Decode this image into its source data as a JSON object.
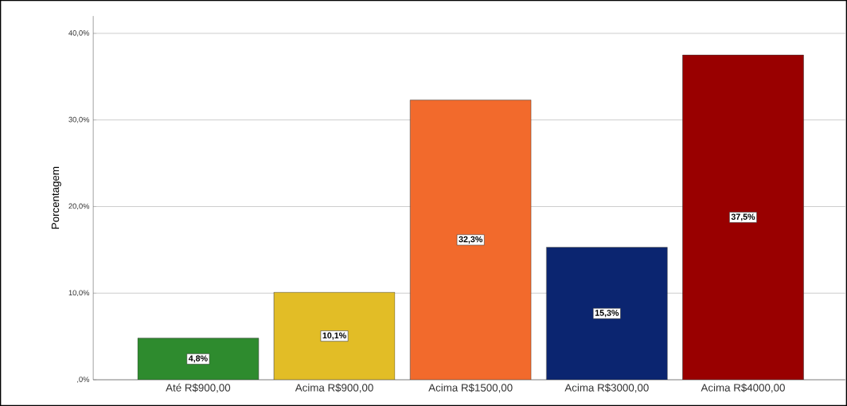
{
  "chart_data": {
    "type": "bar",
    "ylabel": "Porcentagem",
    "categories": [
      "Até R$900,00",
      "Acima R$900,00",
      "Acima R$1500,00",
      "Acima R$3000,00",
      "Acima R$4000,00"
    ],
    "values": [
      4.8,
      10.1,
      32.3,
      15.3,
      37.5
    ],
    "colors": [
      "#2e8b2e",
      "#e2bd26",
      "#f26a2c",
      "#0b2570",
      "#990000"
    ],
    "value_labels": [
      "4,8%",
      "10,1%",
      "32,3%",
      "15,3%",
      "37,5%"
    ],
    "ylim": [
      0,
      42
    ],
    "yticks": [
      {
        "value": 0,
        "label": ",0%"
      },
      {
        "value": 10,
        "label": "10,0%"
      },
      {
        "value": 20,
        "label": "20,0%"
      },
      {
        "value": 30,
        "label": "30,0%"
      },
      {
        "value": 40,
        "label": "40,0%"
      }
    ],
    "grid": "y"
  }
}
